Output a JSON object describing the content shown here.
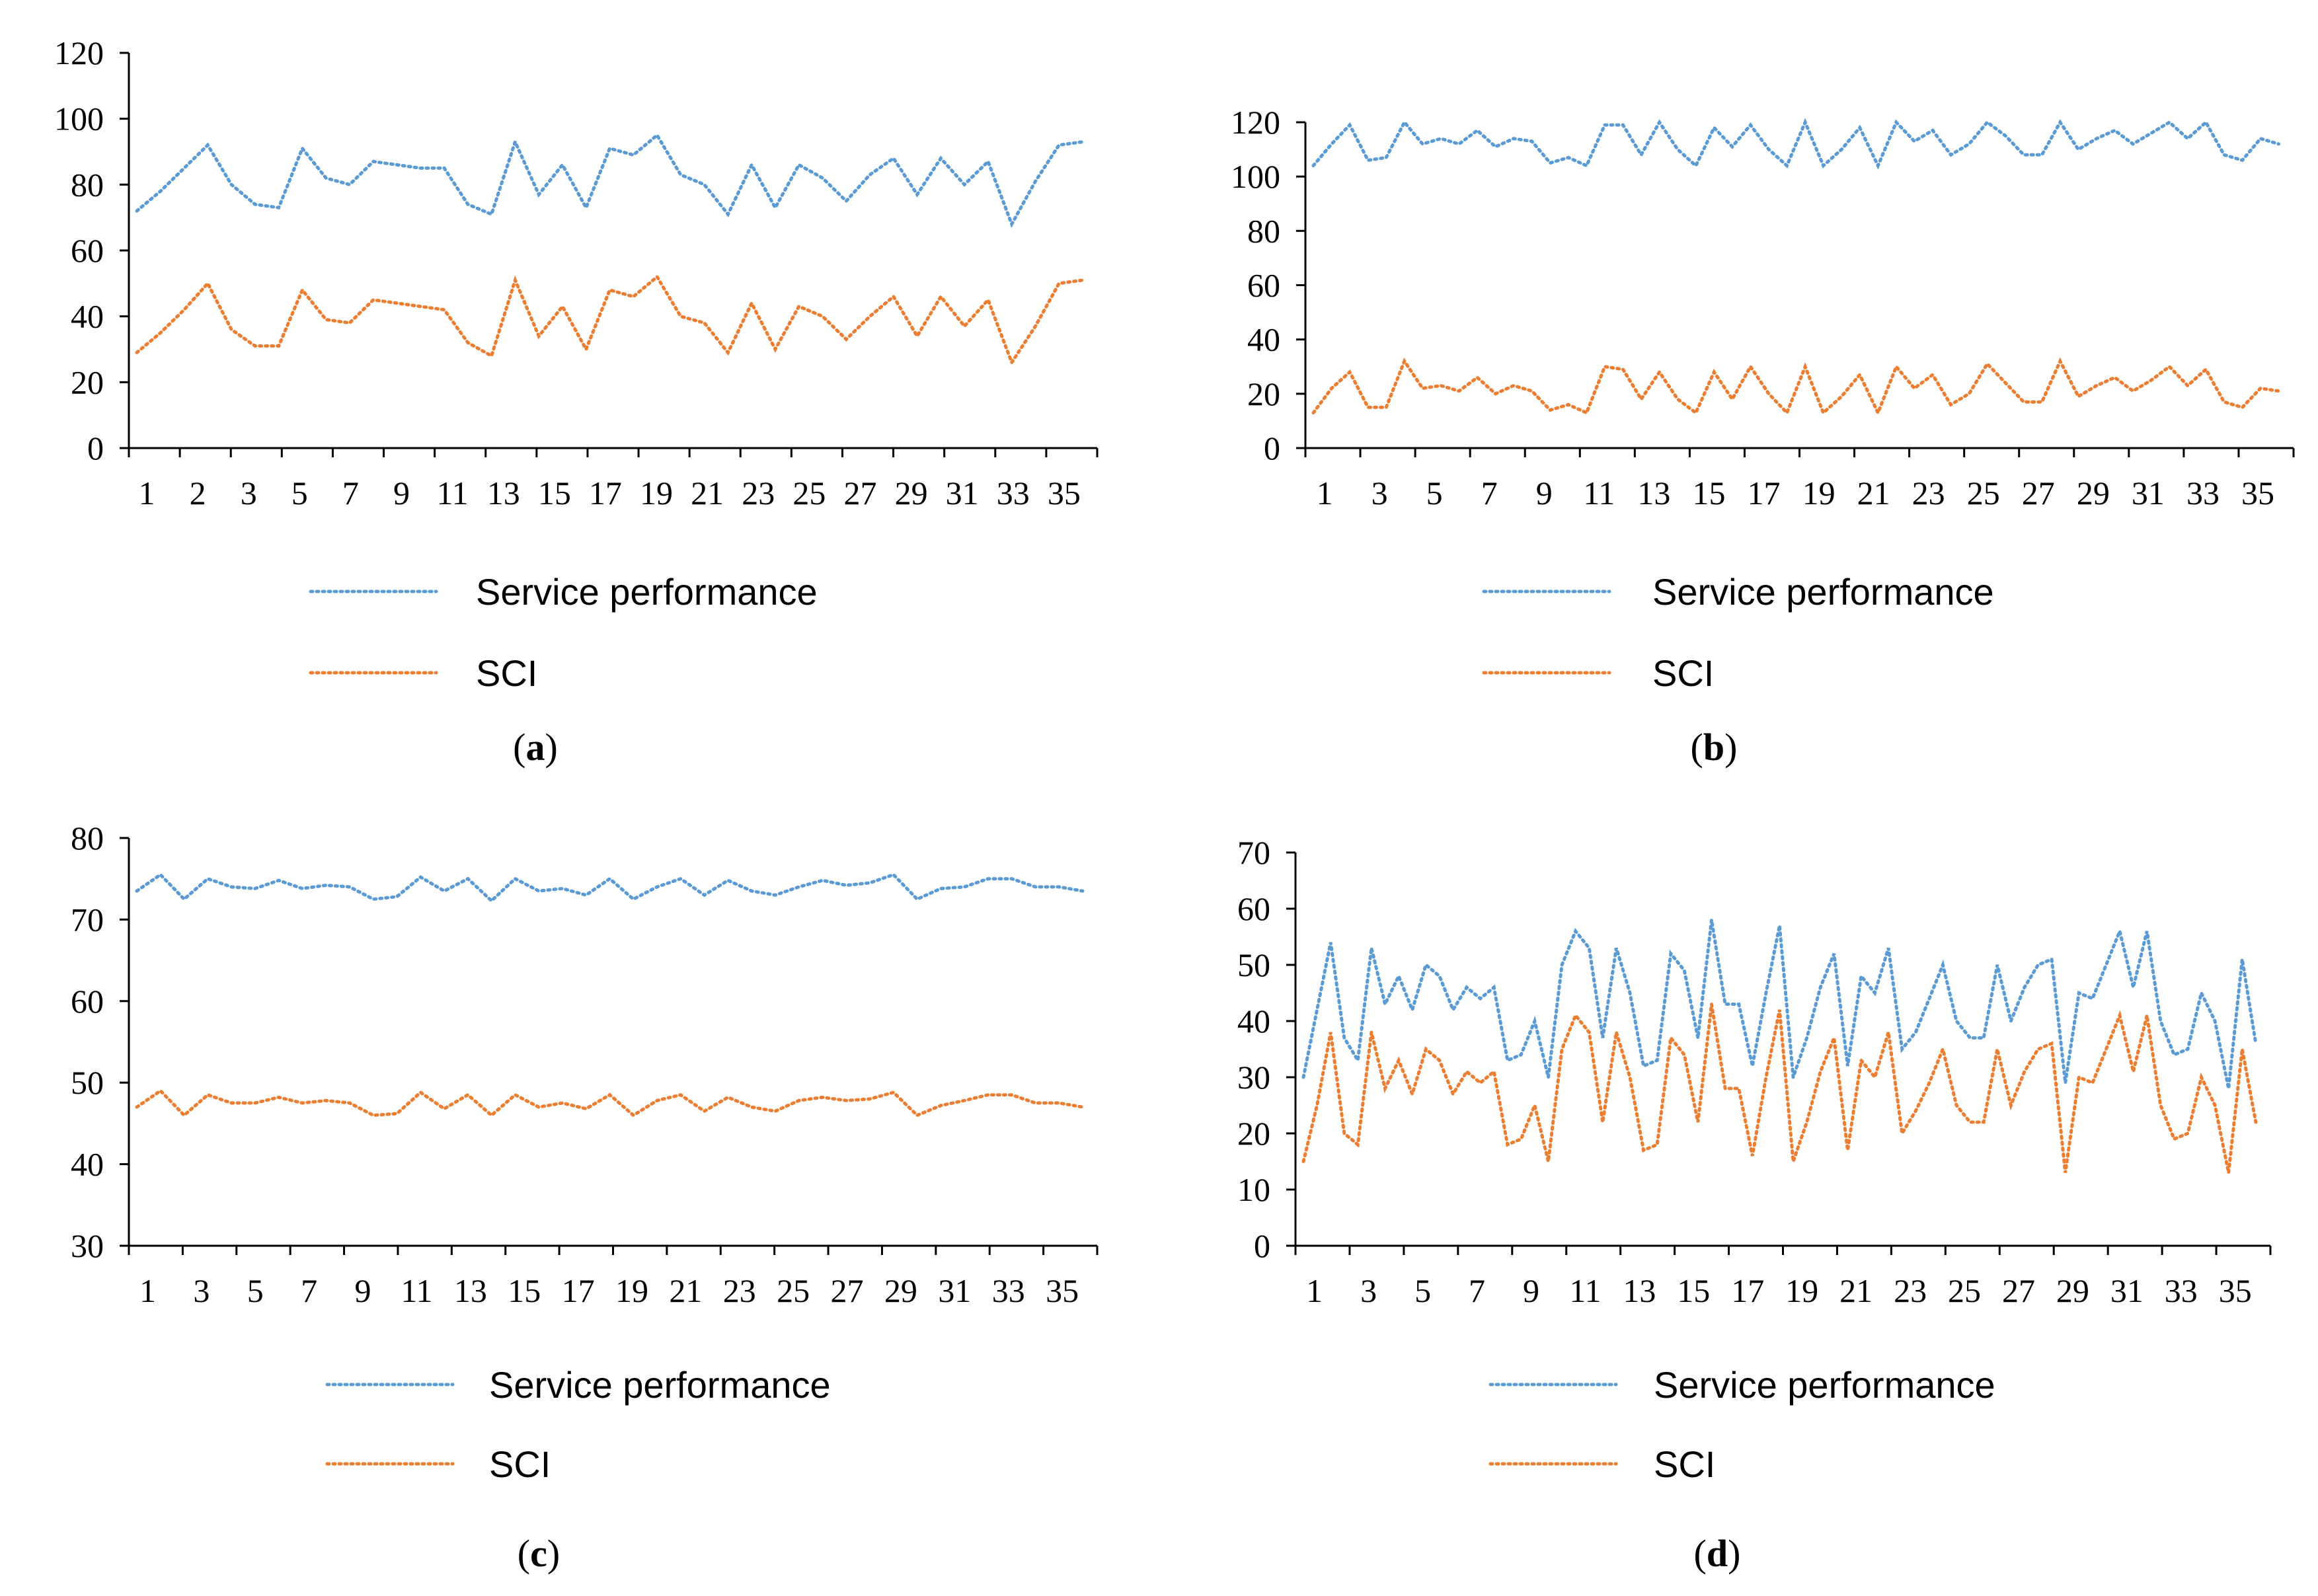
{
  "colors": {
    "service_performance": "#5B9BD5",
    "sci": "#ED7D31",
    "axis": "#000000"
  },
  "chart_data": [
    {
      "id": "a",
      "type": "line",
      "caption": {
        "open": "(",
        "letter": "a",
        "close": ")"
      },
      "ylim": [
        0,
        120
      ],
      "yticks": [
        0,
        20,
        40,
        60,
        80,
        100,
        120
      ],
      "xlabels": [
        "1",
        "2",
        "3",
        "5",
        "7",
        "9",
        "11",
        "13",
        "15",
        "17",
        "19",
        "21",
        "23",
        "25",
        "27",
        "29",
        "31",
        "33",
        "35"
      ],
      "legend": [
        "Service performance",
        "SCI"
      ],
      "series": [
        {
          "name": "Service performance",
          "values": [
            72,
            78,
            85,
            92,
            80,
            74,
            73,
            91,
            82,
            80,
            87,
            86,
            85,
            85,
            74,
            71,
            93,
            77,
            86,
            73,
            91,
            89,
            95,
            83,
            80,
            71,
            86,
            73,
            86,
            82,
            75,
            83,
            88,
            77,
            88,
            80,
            87,
            68,
            81,
            92,
            93
          ]
        },
        {
          "name": "SCI",
          "values": [
            29,
            35,
            42,
            50,
            36,
            31,
            31,
            48,
            39,
            38,
            45,
            44,
            43,
            42,
            32,
            28,
            51,
            34,
            43,
            30,
            48,
            46,
            52,
            40,
            38,
            29,
            44,
            30,
            43,
            40,
            33,
            40,
            46,
            34,
            46,
            37,
            45,
            26,
            37,
            50,
            51
          ]
        }
      ]
    },
    {
      "id": "b",
      "type": "line",
      "caption": {
        "open": "(",
        "letter": "b",
        "close": ")"
      },
      "ylim": [
        0,
        120
      ],
      "yticks": [
        0,
        20,
        40,
        60,
        80,
        100,
        120
      ],
      "xlabels": [
        "1",
        "3",
        "5",
        "7",
        "9",
        "11",
        "13",
        "15",
        "17",
        "19",
        "21",
        "23",
        "25",
        "27",
        "29",
        "31",
        "33",
        "35"
      ],
      "legend": [
        "Service performance",
        "SCI"
      ],
      "series": [
        {
          "name": "Service performance",
          "values": [
            104,
            112,
            119,
            106,
            107,
            120,
            112,
            114,
            112,
            117,
            111,
            114,
            113,
            105,
            107,
            104,
            119,
            119,
            108,
            120,
            110,
            104,
            118,
            111,
            119,
            110,
            104,
            120,
            104,
            110,
            118,
            104,
            120,
            113,
            117,
            108,
            112,
            120,
            115,
            108,
            108,
            120,
            110,
            114,
            117,
            112,
            116,
            120,
            114,
            120,
            108,
            106,
            114,
            112
          ]
        },
        {
          "name": "SCI",
          "values": [
            13,
            22,
            28,
            15,
            15,
            32,
            22,
            23,
            21,
            26,
            20,
            23,
            21,
            14,
            16,
            13,
            30,
            29,
            18,
            28,
            18,
            13,
            28,
            18,
            30,
            20,
            13,
            30,
            13,
            19,
            27,
            13,
            30,
            22,
            27,
            16,
            20,
            31,
            24,
            17,
            17,
            32,
            19,
            23,
            26,
            21,
            25,
            30,
            23,
            29,
            17,
            15,
            22,
            21
          ]
        }
      ]
    },
    {
      "id": "c",
      "type": "line",
      "caption": {
        "open": "(",
        "letter": "c",
        "close": ")"
      },
      "ylim": [
        30,
        80
      ],
      "yticks": [
        30,
        40,
        50,
        60,
        70,
        80
      ],
      "xlabels": [
        "1",
        "3",
        "5",
        "7",
        "9",
        "11",
        "13",
        "15",
        "17",
        "19",
        "21",
        "23",
        "25",
        "27",
        "29",
        "31",
        "33",
        "35"
      ],
      "legend": [
        "Service performance",
        "SCI"
      ],
      "series": [
        {
          "name": "Service performance",
          "values": [
            73.5,
            75.5,
            72.5,
            75,
            74,
            73.8,
            74.8,
            73.8,
            74.2,
            74,
            72.5,
            72.8,
            75.2,
            73.5,
            75,
            72.3,
            75,
            73.5,
            73.8,
            73,
            75,
            72.5,
            74,
            75,
            73,
            74.8,
            73.5,
            73,
            74,
            74.8,
            74.2,
            74.5,
            75.5,
            72.5,
            73.8,
            74,
            75,
            75,
            74,
            74,
            73.5
          ]
        },
        {
          "name": "SCI",
          "values": [
            47,
            49,
            46,
            48.5,
            47.5,
            47.5,
            48.2,
            47.5,
            47.8,
            47.5,
            46,
            46.2,
            48.8,
            46.8,
            48.5,
            46,
            48.5,
            47,
            47.5,
            46.8,
            48.5,
            46,
            47.8,
            48.5,
            46.5,
            48.2,
            47,
            46.5,
            47.8,
            48.2,
            47.8,
            48,
            48.8,
            46,
            47.2,
            47.8,
            48.5,
            48.5,
            47.5,
            47.5,
            47
          ]
        }
      ]
    },
    {
      "id": "d",
      "type": "line",
      "caption": {
        "open": "(",
        "letter": "d",
        "close": ")"
      },
      "ylim": [
        0,
        70
      ],
      "yticks": [
        0,
        10,
        20,
        30,
        40,
        50,
        60,
        70
      ],
      "xlabels": [
        "1",
        "3",
        "5",
        "7",
        "9",
        "11",
        "13",
        "15",
        "17",
        "19",
        "21",
        "23",
        "25",
        "27",
        "29",
        "31",
        "33",
        "35"
      ],
      "legend": [
        "Service performance",
        "SCI"
      ],
      "series": [
        {
          "name": "Service performance",
          "values": [
            30,
            42,
            54,
            37,
            33,
            53,
            43,
            48,
            42,
            50,
            48,
            42,
            46,
            44,
            46,
            33,
            34,
            40,
            30,
            50,
            56,
            53,
            37,
            53,
            45,
            32,
            33,
            52,
            49,
            37,
            58,
            43,
            43,
            32,
            45,
            57,
            30,
            37,
            46,
            52,
            32,
            48,
            45,
            53,
            35,
            38,
            44,
            50,
            40,
            37,
            37,
            50,
            40,
            46,
            50,
            51,
            29,
            45,
            44,
            50,
            56,
            46,
            56,
            40,
            34,
            35,
            45,
            40,
            28,
            51,
            36
          ]
        },
        {
          "name": "SCI",
          "values": [
            15,
            25,
            38,
            20,
            18,
            38,
            28,
            33,
            27,
            35,
            33,
            27,
            31,
            29,
            31,
            18,
            19,
            25,
            15,
            35,
            41,
            38,
            22,
            38,
            30,
            17,
            18,
            37,
            34,
            22,
            43,
            28,
            28,
            16,
            30,
            42,
            15,
            22,
            31,
            37,
            17,
            33,
            30,
            38,
            20,
            24,
            29,
            35,
            25,
            22,
            22,
            35,
            25,
            31,
            35,
            36,
            13,
            30,
            29,
            35,
            41,
            31,
            41,
            25,
            19,
            20,
            30,
            25,
            13,
            35,
            22
          ]
        }
      ]
    }
  ]
}
